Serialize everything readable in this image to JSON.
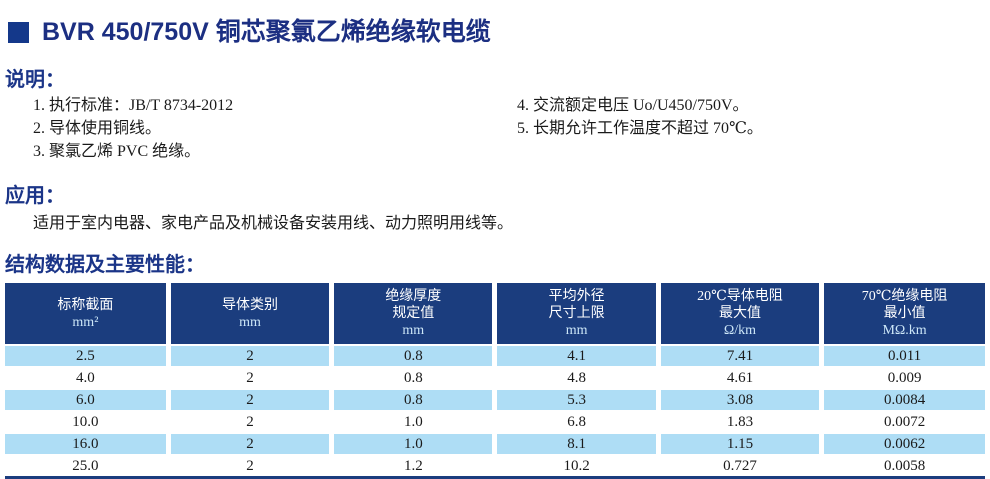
{
  "page": {
    "title": "BVR 450/750V 铜芯聚氯乙烯绝缘软电缆"
  },
  "colors": {
    "title_blue": "#1c2f82",
    "heading_blue": "#1b3588",
    "table_header_bg": "#1b3d7e",
    "table_row_alt": "#aeddf5",
    "table_unit_text": "#cde7f8"
  },
  "description": {
    "heading": "说明：",
    "items_left": [
      "1. 执行标准：JB/T 8734-2012",
      "2. 导体使用铜线。",
      "3. 聚氯乙烯 PVC 绝缘。"
    ],
    "items_right": [
      "4. 交流额定电压 Uo/U450/750V。",
      "5. 长期允许工作温度不超过 70℃。"
    ]
  },
  "application": {
    "heading": "应用：",
    "text": "适用于室内电器、家电产品及机械设备安装用线、动力照明用线等。"
  },
  "table_section": {
    "heading": "结构数据及主要性能："
  },
  "table": {
    "headers": [
      {
        "lines": [
          "标称截面"
        ],
        "unit": "mm²"
      },
      {
        "lines": [
          "导体类别"
        ],
        "unit": "mm"
      },
      {
        "lines": [
          "绝缘厚度",
          "规定值"
        ],
        "unit": "mm"
      },
      {
        "lines": [
          "平均外径",
          "尺寸上限"
        ],
        "unit": "mm"
      },
      {
        "lines": [
          "20℃导体电阻",
          "最大值"
        ],
        "unit": "Ω/km"
      },
      {
        "lines": [
          "70℃绝缘电阻",
          "最小值"
        ],
        "unit": "MΩ.km"
      }
    ],
    "rows": [
      [
        "2.5",
        "2",
        "0.8",
        "4.1",
        "7.41",
        "0.011"
      ],
      [
        "4.0",
        "2",
        "0.8",
        "4.8",
        "4.61",
        "0.009"
      ],
      [
        "6.0",
        "2",
        "0.8",
        "5.3",
        "3.08",
        "0.0084"
      ],
      [
        "10.0",
        "2",
        "1.0",
        "6.8",
        "1.83",
        "0.0072"
      ],
      [
        "16.0",
        "2",
        "1.0",
        "8.1",
        "1.15",
        "0.0062"
      ],
      [
        "25.0",
        "2",
        "1.2",
        "10.2",
        "0.727",
        "0.0058"
      ]
    ]
  }
}
